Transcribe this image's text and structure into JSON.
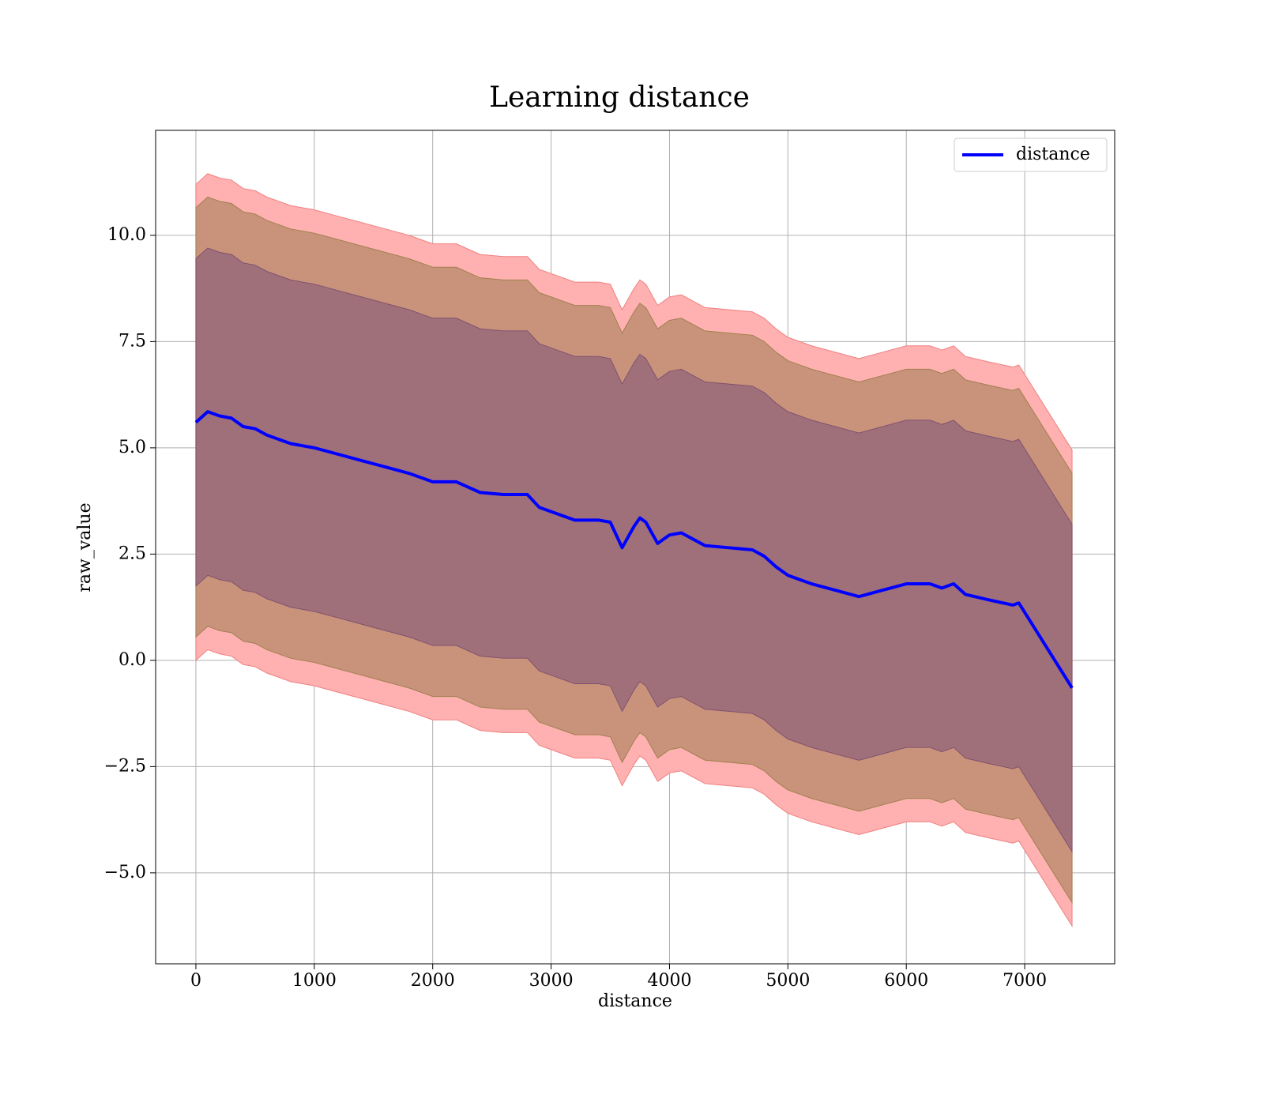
{
  "chart_data": {
    "type": "line",
    "title": "Learning distance",
    "x_label": "distance",
    "y_label": "raw_value",
    "xlim": [
      -340,
      7760
    ],
    "ylim": [
      -7.14,
      12.47
    ],
    "xticks": [
      0,
      1000,
      2000,
      3000,
      4000,
      5000,
      6000,
      7000
    ],
    "yticks": [
      {
        "value": -5,
        "label": "−5.0"
      },
      {
        "value": -2.5,
        "label": "−2.5"
      },
      {
        "value": 0,
        "label": "0.0"
      },
      {
        "value": 2.5,
        "label": "2.5"
      },
      {
        "value": 5,
        "label": "5.0"
      },
      {
        "value": 7.5,
        "label": "7.5"
      },
      {
        "value": 10,
        "label": "10.0"
      }
    ],
    "grid": true,
    "legend": "upper right",
    "x": [
      0,
      100,
      200,
      300,
      400,
      500,
      600,
      800,
      1000,
      1200,
      1400,
      1600,
      1800,
      2000,
      2200,
      2400,
      2600,
      2800,
      2900,
      3000,
      3200,
      3400,
      3500,
      3600,
      3700,
      3750,
      3800,
      3900,
      4000,
      4100,
      4300,
      4500,
      4700,
      4800,
      4900,
      5000,
      5200,
      5400,
      5600,
      5800,
      6000,
      6200,
      6300,
      6400,
      6500,
      6700,
      6900,
      6950,
      7400
    ],
    "bands": [
      {
        "color": "#ffb0b0",
        "edge": "#f08080",
        "upper": [
          11.2,
          11.45,
          11.35,
          11.3,
          11.1,
          11.05,
          10.9,
          10.7,
          10.6,
          10.45,
          10.3,
          10.15,
          10.0,
          9.8,
          9.8,
          9.55,
          9.5,
          9.5,
          9.2,
          9.1,
          8.9,
          8.9,
          8.85,
          8.25,
          8.75,
          8.95,
          8.85,
          8.35,
          8.55,
          8.6,
          8.3,
          8.25,
          8.2,
          8.05,
          7.8,
          7.6,
          7.4,
          7.25,
          7.1,
          7.25,
          7.4,
          7.4,
          7.3,
          7.4,
          7.15,
          7.02,
          6.9,
          6.95,
          4.95
        ],
        "lower": [
          0,
          0.25,
          0.15,
          0.1,
          -0.1,
          -0.15,
          -0.3,
          -0.5,
          -0.6,
          -0.75,
          -0.9,
          -1.05,
          -1.2,
          -1.4,
          -1.4,
          -1.65,
          -1.7,
          -1.7,
          -2.0,
          -2.1,
          -2.3,
          -2.3,
          -2.35,
          -2.95,
          -2.45,
          -2.25,
          -2.35,
          -2.85,
          -2.65,
          -2.6,
          -2.9,
          -2.95,
          -3.0,
          -3.15,
          -3.4,
          -3.6,
          -3.8,
          -3.95,
          -4.1,
          -3.95,
          -3.8,
          -3.8,
          -3.9,
          -3.8,
          -4.05,
          -4.18,
          -4.3,
          -4.25,
          -6.25
        ]
      },
      {
        "color": "#c8937a",
        "edge": "#a08050",
        "upper": [
          10.65,
          10.9,
          10.8,
          10.75,
          10.55,
          10.5,
          10.35,
          10.15,
          10.05,
          9.9,
          9.75,
          9.6,
          9.45,
          9.25,
          9.25,
          9.0,
          8.95,
          8.95,
          8.65,
          8.55,
          8.35,
          8.35,
          8.3,
          7.7,
          8.2,
          8.4,
          8.3,
          7.8,
          8.0,
          8.05,
          7.75,
          7.7,
          7.65,
          7.5,
          7.25,
          7.05,
          6.85,
          6.7,
          6.55,
          6.7,
          6.85,
          6.85,
          6.75,
          6.85,
          6.6,
          6.47,
          6.35,
          6.4,
          4.4
        ],
        "lower": [
          0.55,
          0.8,
          0.7,
          0.65,
          0.45,
          0.4,
          0.25,
          0.05,
          -0.05,
          -0.2,
          -0.35,
          -0.5,
          -0.65,
          -0.85,
          -0.85,
          -1.1,
          -1.15,
          -1.15,
          -1.45,
          -1.55,
          -1.75,
          -1.75,
          -1.8,
          -2.4,
          -1.9,
          -1.7,
          -1.8,
          -2.3,
          -2.1,
          -2.05,
          -2.35,
          -2.4,
          -2.45,
          -2.6,
          -2.85,
          -3.05,
          -3.25,
          -3.4,
          -3.55,
          -3.4,
          -3.25,
          -3.25,
          -3.35,
          -3.25,
          -3.5,
          -3.63,
          -3.75,
          -3.7,
          -5.7
        ]
      },
      {
        "color": "#a0707a",
        "edge": "#805070",
        "upper": [
          9.45,
          9.7,
          9.6,
          9.55,
          9.35,
          9.3,
          9.15,
          8.95,
          8.85,
          8.7,
          8.55,
          8.4,
          8.25,
          8.05,
          8.05,
          7.8,
          7.75,
          7.75,
          7.45,
          7.35,
          7.15,
          7.15,
          7.1,
          6.5,
          7.0,
          7.2,
          7.1,
          6.6,
          6.8,
          6.85,
          6.55,
          6.5,
          6.45,
          6.3,
          6.05,
          5.85,
          5.65,
          5.5,
          5.35,
          5.5,
          5.65,
          5.65,
          5.55,
          5.65,
          5.4,
          5.27,
          5.15,
          5.2,
          3.2
        ],
        "lower": [
          1.75,
          2.0,
          1.9,
          1.85,
          1.65,
          1.6,
          1.45,
          1.25,
          1.15,
          1.0,
          0.85,
          0.7,
          0.55,
          0.35,
          0.35,
          0.1,
          0.05,
          0.05,
          -0.25,
          -0.35,
          -0.55,
          -0.55,
          -0.6,
          -1.2,
          -0.7,
          -0.5,
          -0.6,
          -1.1,
          -0.9,
          -0.85,
          -1.15,
          -1.2,
          -1.25,
          -1.4,
          -1.65,
          -1.85,
          -2.05,
          -2.2,
          -2.35,
          -2.2,
          -2.05,
          -2.05,
          -2.15,
          -2.05,
          -2.3,
          -2.43,
          -2.55,
          -2.5,
          -4.5
        ]
      }
    ],
    "series": [
      {
        "name": "distance",
        "color": "#0000ff",
        "values": [
          5.6,
          5.85,
          5.75,
          5.7,
          5.5,
          5.45,
          5.3,
          5.1,
          5.0,
          4.85,
          4.7,
          4.55,
          4.4,
          4.2,
          4.2,
          3.95,
          3.9,
          3.9,
          3.6,
          3.5,
          3.3,
          3.3,
          3.25,
          2.65,
          3.15,
          3.35,
          3.25,
          2.75,
          2.95,
          3.0,
          2.7,
          2.65,
          2.6,
          2.45,
          2.2,
          2.0,
          1.8,
          1.65,
          1.5,
          1.65,
          1.8,
          1.8,
          1.7,
          1.8,
          1.55,
          1.42,
          1.3,
          1.35,
          -0.65
        ]
      }
    ]
  }
}
